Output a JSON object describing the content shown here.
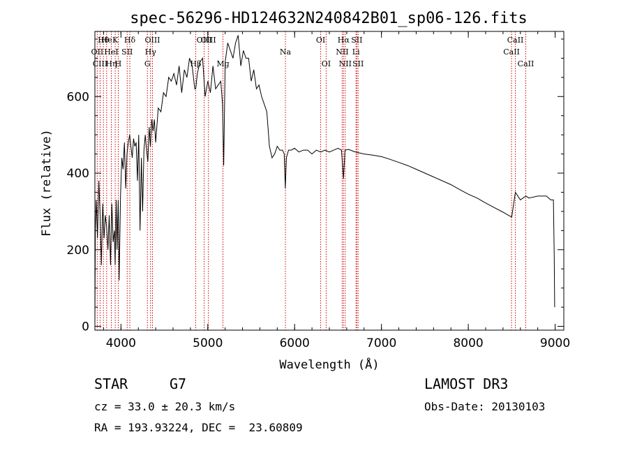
{
  "chart_data": {
    "type": "line",
    "title": "spec-56296-HD124632N240842B01_sp06-126.fits",
    "xlabel": "Wavelength (Å)",
    "ylabel": "Flux (relative)",
    "xlim": [
      3700,
      9100
    ],
    "ylim": [
      -10,
      770
    ],
    "xticks": [
      4000,
      5000,
      6000,
      7000,
      8000,
      9000
    ],
    "yticks": [
      0,
      200,
      400,
      600
    ],
    "grid": false,
    "series": [
      {
        "color": "#000000",
        "x": [
          3700,
          3705,
          3715,
          3730,
          3745,
          3760,
          3775,
          3790,
          3805,
          3820,
          3835,
          3850,
          3865,
          3880,
          3895,
          3910,
          3925,
          3933,
          3945,
          3955,
          3968,
          3980,
          3995,
          4010,
          4025,
          4040,
          4055,
          4070,
          4085,
          4100,
          4115,
          4130,
          4145,
          4160,
          4175,
          4190,
          4205,
          4220,
          4235,
          4250,
          4265,
          4280,
          4295,
          4310,
          4325,
          4340,
          4355,
          4370,
          4385,
          4400,
          4430,
          4460,
          4490,
          4520,
          4550,
          4580,
          4610,
          4640,
          4670,
          4700,
          4730,
          4760,
          4790,
          4820,
          4850,
          4861,
          4880,
          4910,
          4940,
          4970,
          5000,
          5030,
          5060,
          5090,
          5120,
          5150,
          5170,
          5183,
          5200,
          5230,
          5260,
          5290,
          5320,
          5350,
          5380,
          5410,
          5440,
          5470,
          5500,
          5530,
          5560,
          5590,
          5620,
          5650,
          5680,
          5710,
          5740,
          5770,
          5800,
          5830,
          5860,
          5880,
          5893,
          5905,
          5930,
          5960,
          6000,
          6050,
          6100,
          6150,
          6200,
          6250,
          6300,
          6350,
          6400,
          6450,
          6500,
          6540,
          6563,
          6580,
          6620,
          6700,
          6800,
          6900,
          7000,
          7100,
          7200,
          7300,
          7400,
          7500,
          7600,
          7700,
          7800,
          7900,
          8000,
          8100,
          8200,
          8300,
          8400,
          8500,
          8542,
          8600,
          8662,
          8700,
          8800,
          8900,
          8950,
          8980,
          8990,
          8995
        ],
        "y": [
          10,
          250,
          330,
          230,
          380,
          290,
          160,
          320,
          230,
          290,
          260,
          200,
          290,
          160,
          320,
          220,
          250,
          160,
          330,
          200,
          330,
          120,
          340,
          440,
          410,
          480,
          360,
          450,
          480,
          500,
          470,
          440,
          490,
          470,
          480,
          380,
          500,
          250,
          440,
          300,
          460,
          500,
          460,
          430,
          520,
          470,
          540,
          510,
          540,
          480,
          570,
          560,
          610,
          600,
          650,
          640,
          660,
          630,
          680,
          610,
          670,
          650,
          700,
          680,
          620,
          620,
          660,
          690,
          700,
          600,
          640,
          610,
          680,
          620,
          630,
          640,
          580,
          420,
          690,
          740,
          720,
          700,
          740,
          760,
          680,
          720,
          700,
          700,
          640,
          670,
          620,
          630,
          600,
          580,
          560,
          470,
          440,
          450,
          470,
          460,
          460,
          450,
          360,
          440,
          460,
          460,
          465,
          455,
          460,
          460,
          450,
          460,
          455,
          460,
          455,
          460,
          465,
          460,
          385,
          460,
          462,
          455,
          450,
          447,
          443,
          436,
          428,
          420,
          410,
          400,
          390,
          380,
          370,
          357,
          345,
          335,
          322,
          310,
          298,
          285,
          350,
          330,
          340,
          335,
          340,
          340,
          330,
          330,
          180,
          50
        ]
      }
    ],
    "lines": [
      {
        "label": "Hθ",
        "x": 3798,
        "row": 1
      },
      {
        "label": "OII",
        "x": 3727,
        "row": 2
      },
      {
        "label": "CIII",
        "x": 3760,
        "row": 3
      },
      {
        "label": "He",
        "x": 3835,
        "row": 1
      },
      {
        "label": "K",
        "x": 3934,
        "row": 1
      },
      {
        "label": "HeI",
        "x": 3889,
        "row": 2
      },
      {
        "label": "SII",
        "x": 4072,
        "row": 2
      },
      {
        "label": "Hη",
        "x": 3889,
        "row": 3
      },
      {
        "label": "H",
        "x": 3969,
        "row": 3
      },
      {
        "label": "Hδ",
        "x": 4102,
        "row": 1
      },
      {
        "label": "OIII",
        "x": 4363,
        "row": 1
      },
      {
        "label": "Hγ",
        "x": 4341,
        "row": 2
      },
      {
        "label": "G",
        "x": 4305,
        "row": 3
      },
      {
        "label": "OIII",
        "x": 4959,
        "row": 1
      },
      {
        "label": "OIII",
        "x": 5007,
        "row": 1
      },
      {
        "label": "Hβ",
        "x": 4861,
        "row": 3
      },
      {
        "label": "Mg",
        "x": 5175,
        "row": 3
      },
      {
        "label": "Na",
        "x": 5894,
        "row": 2
      },
      {
        "label": "OI",
        "x": 6300,
        "row": 1
      },
      {
        "label": "OI",
        "x": 6363,
        "row": 3
      },
      {
        "label": "Hα",
        "x": 6563,
        "row": 1
      },
      {
        "label": "SII",
        "x": 6716,
        "row": 1
      },
      {
        "label": "NII",
        "x": 6548,
        "row": 2
      },
      {
        "label": "Li",
        "x": 6707,
        "row": 2
      },
      {
        "label": "NII",
        "x": 6583,
        "row": 3
      },
      {
        "label": "SII",
        "x": 6731,
        "row": 3
      },
      {
        "label": "CaII",
        "x": 8542,
        "row": 1
      },
      {
        "label": "CaII",
        "x": 8498,
        "row": 2
      },
      {
        "label": "CaII",
        "x": 8662,
        "row": 3
      }
    ],
    "line_color": "#cc0000"
  },
  "info": {
    "object": "STAR",
    "subclass": "G7",
    "survey": "LAMOST DR3",
    "redshift": "cz = 33.0 ± 20.3 km/s",
    "obs_date": "Obs-Date: 20130103",
    "coords": "RA = 193.93224, DEC =  23.60809"
  }
}
